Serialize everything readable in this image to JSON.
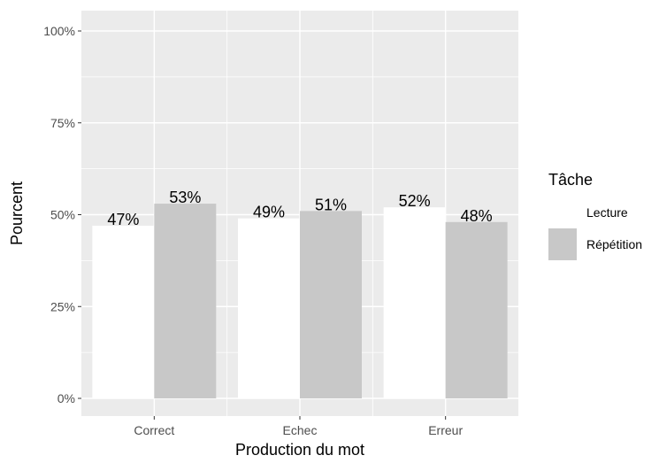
{
  "chart_data": {
    "type": "bar",
    "categories": [
      "Correct",
      "Echec",
      "Erreur"
    ],
    "series": [
      {
        "name": "Lecture",
        "values": [
          47,
          49,
          52
        ],
        "labels": [
          "47%",
          "49%",
          "52%"
        ],
        "color": "#ffffff"
      },
      {
        "name": "Répétition",
        "values": [
          53,
          51,
          48
        ],
        "labels": [
          "53%",
          "51%",
          "48%"
        ],
        "color": "#c8c8c8"
      }
    ],
    "ylim": [
      0,
      100
    ],
    "yticks": [
      0,
      25,
      50,
      75,
      100
    ],
    "ytick_labels": [
      "0%",
      "25%",
      "50%",
      "75%",
      "100%"
    ],
    "xlabel": "Production du mot",
    "ylabel": "Pourcent",
    "legend": {
      "title": "Tâche",
      "position": "right"
    },
    "grid": true,
    "panel_background": "#ebebeb",
    "grid_color": "#ffffff"
  }
}
